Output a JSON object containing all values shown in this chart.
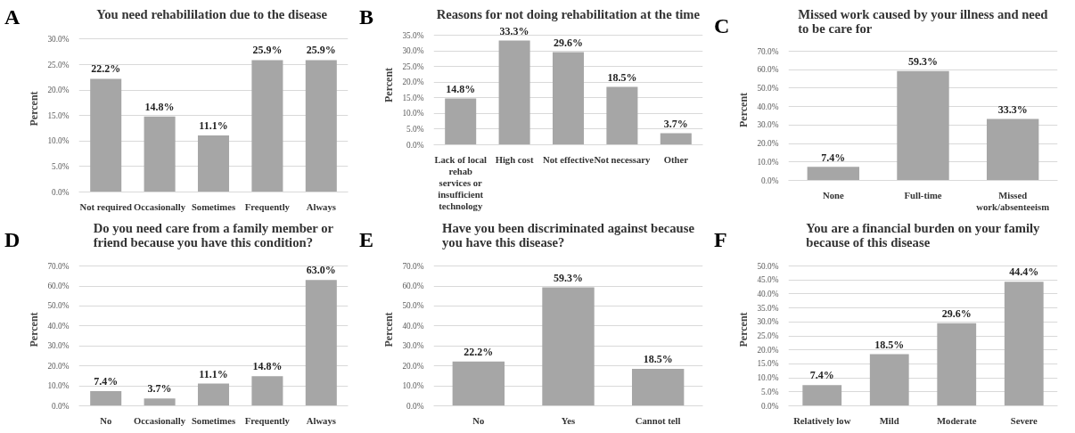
{
  "chart_data": [
    {
      "type": "bar",
      "annotations": [
        "A"
      ],
      "title": "You need rehabililation  due to the disease",
      "ylabel": "Percent",
      "categories": [
        "Not required",
        "Occasionally",
        "Sometimes",
        "Frequently",
        "Always"
      ],
      "values": [
        22.2,
        14.8,
        11.1,
        25.9,
        25.9
      ],
      "value_labels": [
        "22.2%",
        "14.8%",
        "11.1%",
        "25.9%",
        "25.9%"
      ],
      "color": "#a6a6a6",
      "ylim": [
        0,
        30
      ],
      "yticks": [
        {
          "value": 0,
          "label": "0.0%"
        },
        {
          "value": 5,
          "label": "5.0%"
        },
        {
          "value": 10,
          "label": "10.0%"
        },
        {
          "value": 15,
          "label": "15.0%"
        },
        {
          "value": 20,
          "label": "20.0%"
        },
        {
          "value": 25,
          "label": "25.0%"
        },
        {
          "value": 30,
          "label": "30.0%"
        }
      ],
      "grid": "y"
    },
    {
      "type": "bar",
      "annotations": [
        "B"
      ],
      "title": "Reasons for not doing rehabilitation at the time",
      "ylabel": "Percent",
      "categories": [
        "Lack of local rehab services or insufficient technology",
        "High cost",
        "Not effective",
        "Not necessary",
        "Other"
      ],
      "values": [
        14.8,
        33.3,
        29.6,
        18.5,
        3.7
      ],
      "value_labels": [
        "14.8%",
        "33.3%",
        "29.6%",
        "18.5%",
        "3.7%"
      ],
      "color": "#a6a6a6",
      "ylim": [
        0,
        35
      ],
      "yticks": [
        {
          "value": 0,
          "label": "0.0%"
        },
        {
          "value": 5,
          "label": "5.0%"
        },
        {
          "value": 10,
          "label": "10.0%"
        },
        {
          "value": 15,
          "label": "15.0%"
        },
        {
          "value": 20,
          "label": "20.0%"
        },
        {
          "value": 25,
          "label": "25.0%"
        },
        {
          "value": 30,
          "label": "30.0%"
        },
        {
          "value": 35,
          "label": "35.0%"
        }
      ],
      "grid": "y"
    },
    {
      "type": "bar",
      "annotations": [
        "C"
      ],
      "title": "Missed work caused by your illness and need\nto be care for",
      "ylabel": "Percent",
      "categories": [
        "None",
        "Full-time",
        "Missed work/absenteeism"
      ],
      "values": [
        7.4,
        59.3,
        33.3
      ],
      "value_labels": [
        "7.4%",
        "59.3%",
        "33.3%"
      ],
      "color": "#a6a6a6",
      "ylim": [
        0,
        70
      ],
      "yticks": [
        {
          "value": 0,
          "label": "0.0%"
        },
        {
          "value": 10,
          "label": "10.0%"
        },
        {
          "value": 20,
          "label": "20.0%"
        },
        {
          "value": 30,
          "label": "30.0%"
        },
        {
          "value": 40,
          "label": "40.0%"
        },
        {
          "value": 50,
          "label": "50.0%"
        },
        {
          "value": 60,
          "label": "60.0%"
        },
        {
          "value": 70,
          "label": "70.0%"
        }
      ],
      "grid": "y"
    },
    {
      "type": "bar",
      "annotations": [
        "D"
      ],
      "title": "Do you need care from a family member or\nfriend because you have this condition?",
      "ylabel": "Percent",
      "categories": [
        "No",
        "Occasionally",
        "Sometimes",
        "Frequently",
        "Always"
      ],
      "values": [
        7.4,
        3.7,
        11.1,
        14.8,
        63.0
      ],
      "value_labels": [
        "7.4%",
        "3.7%",
        "11.1%",
        "14.8%",
        "63.0%"
      ],
      "color": "#a6a6a6",
      "ylim": [
        0,
        70
      ],
      "yticks": [
        {
          "value": 0,
          "label": "0.0%"
        },
        {
          "value": 10,
          "label": "10.0%"
        },
        {
          "value": 20,
          "label": "20.0%"
        },
        {
          "value": 30,
          "label": "30.0%"
        },
        {
          "value": 40,
          "label": "40.0%"
        },
        {
          "value": 50,
          "label": "50.0%"
        },
        {
          "value": 60,
          "label": "60.0%"
        },
        {
          "value": 70,
          "label": "70.0%"
        }
      ],
      "grid": "y"
    },
    {
      "type": "bar",
      "annotations": [
        "E"
      ],
      "title": "Have you been discriminated against because\nyou have this disease?",
      "ylabel": "Percent",
      "categories": [
        "No",
        "Yes",
        "Cannot tell"
      ],
      "values": [
        22.2,
        59.3,
        18.5
      ],
      "value_labels": [
        "22.2%",
        "59.3%",
        "18.5%"
      ],
      "color": "#a6a6a6",
      "ylim": [
        0,
        70
      ],
      "yticks": [
        {
          "value": 0,
          "label": "0.0%"
        },
        {
          "value": 10,
          "label": "10.0%"
        },
        {
          "value": 20,
          "label": "20.0%"
        },
        {
          "value": 30,
          "label": "30.0%"
        },
        {
          "value": 40,
          "label": "40.0%"
        },
        {
          "value": 50,
          "label": "50.0%"
        },
        {
          "value": 60,
          "label": "60.0%"
        },
        {
          "value": 70,
          "label": "70.0%"
        }
      ],
      "grid": "y"
    },
    {
      "type": "bar",
      "annotations": [
        "F"
      ],
      "title": "You are a financial burden on your family\nbecause of this disease",
      "ylabel": "Percent",
      "categories": [
        "Relatively low",
        "Mild",
        "Moderate",
        "Severe"
      ],
      "values": [
        7.4,
        18.5,
        29.6,
        44.4
      ],
      "value_labels": [
        "7.4%",
        "18.5%",
        "29.6%",
        "44.4%"
      ],
      "color": "#a6a6a6",
      "ylim": [
        0,
        50
      ],
      "yticks": [
        {
          "value": 0,
          "label": "0.0%"
        },
        {
          "value": 5,
          "label": "5.0%"
        },
        {
          "value": 10,
          "label": "10.0%"
        },
        {
          "value": 15,
          "label": "15.0%"
        },
        {
          "value": 20,
          "label": "20.0%"
        },
        {
          "value": 25,
          "label": "25.0%"
        },
        {
          "value": 30,
          "label": "30.0%"
        },
        {
          "value": 35,
          "label": "35.0%"
        },
        {
          "value": 40,
          "label": "40.0%"
        },
        {
          "value": 45,
          "label": "45.0%"
        },
        {
          "value": 50,
          "label": "50.0%"
        }
      ],
      "grid": "y"
    }
  ]
}
